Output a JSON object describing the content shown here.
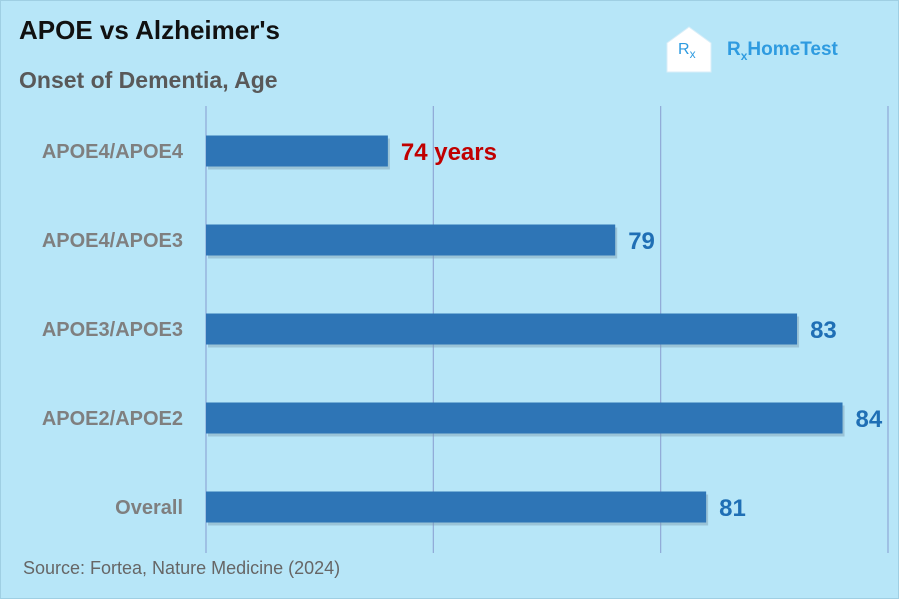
{
  "header": {
    "title": "APOE vs Alzheimer's",
    "subtitle": "Onset of Dementia, Age"
  },
  "logo": {
    "box_main": "R",
    "box_sub": "x",
    "word_main": "R",
    "word_sub": "x",
    "word_rest": "HomeTest"
  },
  "footer": {
    "source": "Source: Fortea, Nature Medicine (2024)"
  },
  "colors": {
    "bar": "#2e75b6",
    "label_default": "#1f6fb5",
    "label_highlight": "#c00000",
    "category_text": "#7f7f7f",
    "gridline": "#8fa8d6"
  },
  "chart_data": {
    "type": "bar",
    "orientation": "horizontal",
    "categories": [
      "APOE4/APOE4",
      "APOE4/APOE3",
      "APOE3/APOE3",
      "APOE2/APOE2",
      "Overall"
    ],
    "values": [
      74,
      79,
      83,
      84,
      81
    ],
    "data_labels": [
      "74 years",
      "79",
      "83",
      "84",
      "81"
    ],
    "highlight_index": 0,
    "xlim": [
      70,
      85
    ],
    "grid": true
  }
}
